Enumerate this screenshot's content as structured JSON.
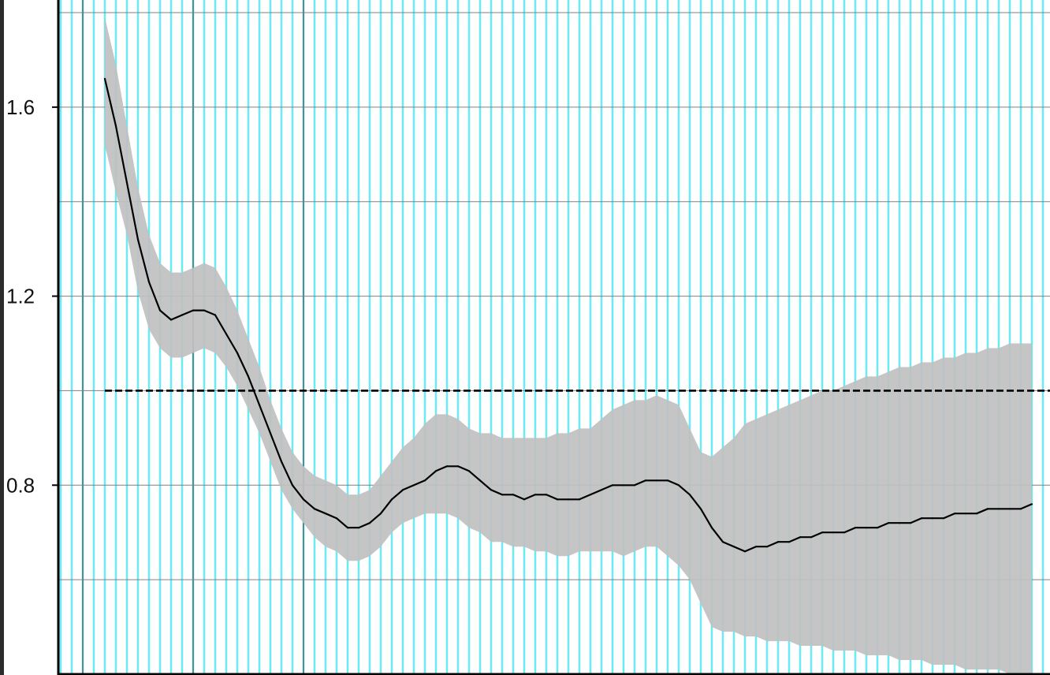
{
  "colors": {
    "background": "#ffffff",
    "band": "#c0c0c0",
    "line": "#000000",
    "reference_line": "#000000",
    "vertical_grid": "#6eeaf0",
    "horizontal_grid": "#808080",
    "axis": "#000000"
  },
  "chart_data": {
    "type": "line",
    "title": "",
    "xlabel": "",
    "ylabel": "",
    "ylim": [
      0.4,
      1.8
    ],
    "xlim": [
      -4,
      90
    ],
    "yticks": [
      1.6,
      1.2,
      0.8
    ],
    "ytick_labels": [
      "1.6",
      "1.2",
      "0.8"
    ],
    "horizontal_gridlines": [
      1.8,
      1.6,
      1.4,
      1.2,
      1.0,
      0.8,
      0.6
    ],
    "grid": true,
    "legend": "none",
    "vertical_dark_lines_at_x": [
      -2,
      8,
      18
    ],
    "reference_line": {
      "y": 1.0,
      "style": "dashed"
    },
    "x": [
      0,
      1,
      2,
      3,
      4,
      5,
      6,
      7,
      8,
      9,
      10,
      11,
      12,
      13,
      14,
      15,
      16,
      17,
      18,
      19,
      20,
      21,
      22,
      23,
      24,
      25,
      26,
      27,
      28,
      29,
      30,
      31,
      32,
      33,
      34,
      35,
      36,
      37,
      38,
      39,
      40,
      41,
      42,
      43,
      44,
      45,
      46,
      47,
      48,
      49,
      50,
      51,
      52,
      53,
      54,
      55,
      56,
      57,
      58,
      59,
      60,
      61,
      62,
      63,
      64,
      65,
      66,
      67,
      68,
      69,
      70,
      71,
      72,
      73,
      74,
      75,
      76,
      77,
      78,
      79,
      80,
      81,
      82,
      83,
      84
    ],
    "series": [
      {
        "values": [
          1.66,
          1.56,
          1.44,
          1.32,
          1.23,
          1.17,
          1.15,
          1.16,
          1.17,
          1.17,
          1.16,
          1.12,
          1.08,
          1.03,
          0.97,
          0.91,
          0.85,
          0.8,
          0.77,
          0.75,
          0.74,
          0.73,
          0.71,
          0.71,
          0.72,
          0.74,
          0.77,
          0.79,
          0.8,
          0.81,
          0.83,
          0.84,
          0.84,
          0.83,
          0.81,
          0.79,
          0.78,
          0.78,
          0.77,
          0.78,
          0.78,
          0.77,
          0.77,
          0.77,
          0.78,
          0.79,
          0.8,
          0.8,
          0.8,
          0.81,
          0.81,
          0.81,
          0.8,
          0.78,
          0.75,
          0.71,
          0.68,
          0.67,
          0.66,
          0.67,
          0.67,
          0.68,
          0.68,
          0.69,
          0.69,
          0.7,
          0.7,
          0.7,
          0.71,
          0.71,
          0.71,
          0.72,
          0.72,
          0.72,
          0.73,
          0.73,
          0.73,
          0.74,
          0.74,
          0.74,
          0.75,
          0.75,
          0.75,
          0.75,
          0.76
        ],
        "lower": [
          1.52,
          1.42,
          1.33,
          1.21,
          1.13,
          1.09,
          1.07,
          1.07,
          1.08,
          1.09,
          1.08,
          1.05,
          1.01,
          0.96,
          0.91,
          0.85,
          0.79,
          0.75,
          0.72,
          0.69,
          0.67,
          0.66,
          0.64,
          0.64,
          0.65,
          0.67,
          0.7,
          0.72,
          0.73,
          0.74,
          0.74,
          0.74,
          0.73,
          0.71,
          0.7,
          0.68,
          0.68,
          0.67,
          0.67,
          0.66,
          0.66,
          0.65,
          0.65,
          0.66,
          0.66,
          0.66,
          0.66,
          0.65,
          0.66,
          0.67,
          0.67,
          0.65,
          0.63,
          0.6,
          0.55,
          0.5,
          0.49,
          0.49,
          0.48,
          0.48,
          0.47,
          0.47,
          0.47,
          0.46,
          0.46,
          0.46,
          0.45,
          0.45,
          0.45,
          0.44,
          0.44,
          0.44,
          0.43,
          0.43,
          0.43,
          0.42,
          0.42,
          0.42,
          0.41,
          0.41,
          0.41,
          0.41,
          0.4,
          0.4,
          0.4
        ],
        "upper": [
          1.79,
          1.69,
          1.56,
          1.43,
          1.33,
          1.27,
          1.25,
          1.25,
          1.26,
          1.27,
          1.26,
          1.22,
          1.17,
          1.11,
          1.05,
          0.98,
          0.92,
          0.87,
          0.84,
          0.82,
          0.81,
          0.8,
          0.78,
          0.78,
          0.79,
          0.82,
          0.85,
          0.88,
          0.9,
          0.93,
          0.95,
          0.95,
          0.94,
          0.92,
          0.91,
          0.91,
          0.9,
          0.9,
          0.9,
          0.9,
          0.9,
          0.91,
          0.91,
          0.92,
          0.92,
          0.94,
          0.96,
          0.97,
          0.98,
          0.98,
          0.99,
          0.98,
          0.97,
          0.92,
          0.87,
          0.86,
          0.88,
          0.9,
          0.93,
          0.94,
          0.95,
          0.96,
          0.97,
          0.98,
          0.99,
          1.0,
          1.0,
          1.01,
          1.02,
          1.03,
          1.03,
          1.04,
          1.05,
          1.05,
          1.06,
          1.06,
          1.07,
          1.07,
          1.08,
          1.08,
          1.09,
          1.09,
          1.1,
          1.1,
          1.1
        ]
      }
    ]
  }
}
